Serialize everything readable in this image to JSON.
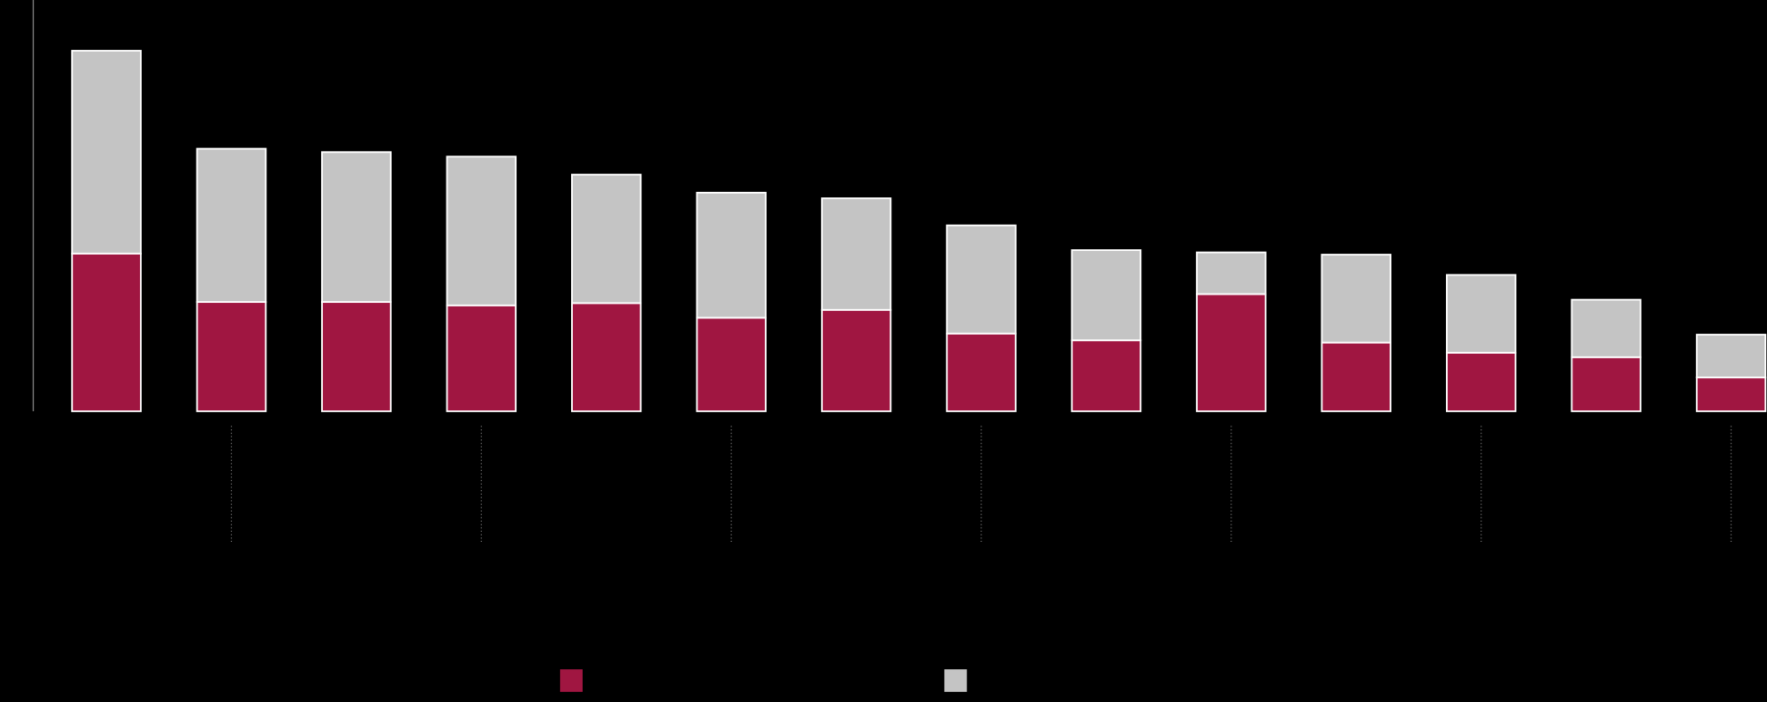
{
  "chart_data": {
    "type": "bar",
    "stacked": true,
    "categories": [
      null,
      null,
      null,
      null,
      null,
      null,
      null,
      null,
      null,
      null,
      null,
      null,
      null,
      null
    ],
    "series": [
      {
        "color": "#a01641",
        "values": [
          140,
          97,
          97,
          94,
          96,
          83,
          90,
          69,
          63,
          104,
          61,
          52,
          48,
          30
        ]
      },
      {
        "color": "#c4c4c4",
        "values": [
          180,
          136,
          133,
          132,
          114,
          111,
          99,
          96,
          80,
          37,
          78,
          69,
          51,
          38
        ]
      }
    ],
    "ylim": [
      0,
      365
    ]
  }
}
